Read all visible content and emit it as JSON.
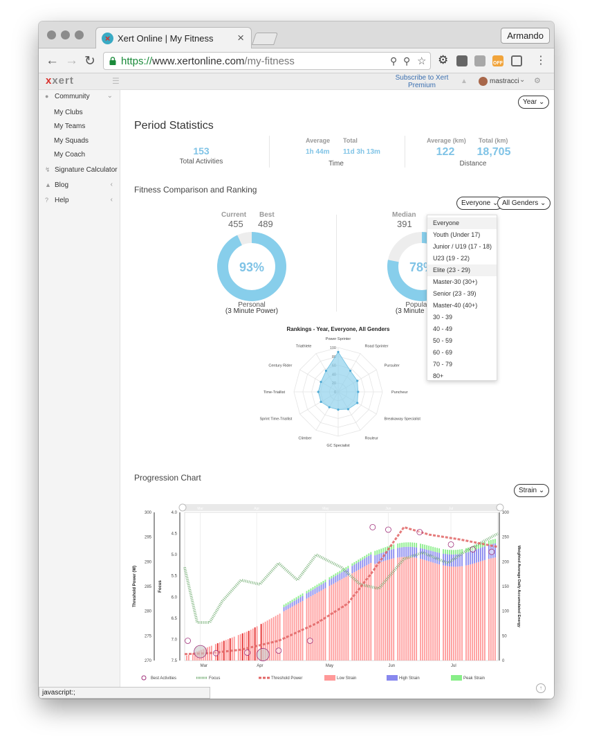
{
  "browser": {
    "tab_title": "Xert Online | My Fitness",
    "profile_name": "Armando",
    "url_scheme": "https://",
    "url_host": "www.xertonline.com",
    "url_path": "/my-fitness",
    "ext_badge": "OFF",
    "status_text": "javascript:;"
  },
  "header": {
    "logo": "xert",
    "subscribe": "Subscribe to Xert Premium",
    "username": "mastracci"
  },
  "sidebar": {
    "community": "Community",
    "sub_items": [
      "My Clubs",
      "My Teams",
      "My Squads",
      "My Coach"
    ],
    "items": [
      "Signature Calculator",
      "Blog",
      "Help"
    ]
  },
  "period_select": "Year",
  "period_stats": {
    "title": "Period Statistics",
    "total_activities": "153",
    "total_activities_label": "Total Activities",
    "time_avg_label": "Average",
    "time_avg": "1h 44m",
    "time_total_label": "Total",
    "time_total": "11d 3h 13m",
    "time_label": "Time",
    "dist_avg_label": "Average (km)",
    "dist_avg": "122",
    "dist_total_label": "Total (km)",
    "dist_total": "18,705",
    "dist_label": "Distance"
  },
  "fitness": {
    "title": "Fitness Comparison and Ranking",
    "filter_age": "Everyone",
    "filter_gender": "All Genders",
    "current_label": "Current",
    "current": "455",
    "best_label": "Best",
    "best": "489",
    "personal_pct": "93%",
    "personal_fraction": 0.93,
    "personal_label": "Personal",
    "personal_sub": "(3 Minute Power)",
    "median_label": "Median",
    "median": "391",
    "population_pct": "78%",
    "population_fraction": 0.78,
    "population_label": "Population",
    "population_sub": "(3 Minute Power)"
  },
  "age_options": [
    "Everyone",
    "Youth (Under 17)",
    "Junior / U19 (17 - 18)",
    "U23 (19 - 22)",
    "Elite (23 - 29)",
    "Master-30 (30+)",
    "Senior (23 - 39)",
    "Master-40 (40+)",
    "30 - 39",
    "40 - 49",
    "50 - 59",
    "60 - 69",
    "70 - 79",
    "80+"
  ],
  "progression": {
    "title": "Progression Chart",
    "select": "Strain"
  },
  "chart_data": [
    {
      "type": "radar",
      "title": "Rankings - Year, Everyone, All Genders",
      "categories": [
        "Power Sprinter",
        "Road Sprinter",
        "Pursuiter",
        "Puncheur",
        "Breakaway Specialist",
        "Rouleur",
        "GC Specialist",
        "Climber",
        "Sprint Time-Triallist",
        "Time-Triallist",
        "Century Rider",
        "Triathlete"
      ],
      "values": [
        90,
        55,
        50,
        45,
        50,
        45,
        40,
        40,
        45,
        45,
        45,
        55
      ],
      "ticks": [
        "100",
        "80",
        "60",
        "40",
        "20",
        "0"
      ],
      "rlim": [
        0,
        100
      ]
    },
    {
      "type": "bar",
      "x_ticks": [
        "Mar",
        "Apr",
        "May",
        "Jun",
        "Jul"
      ],
      "navigator_ticks": [
        "Mar",
        "Apr",
        "May",
        "Jun",
        "Jul"
      ],
      "y_left_label": "Threshold Power (W)",
      "y_left_ticks": [
        "300",
        "295",
        "290",
        "285",
        "280",
        "275",
        "270"
      ],
      "y_left_range": [
        270,
        300
      ],
      "y_focus_label": "Focus",
      "y_focus_ticks": [
        "4.0",
        "4.5",
        "5.0",
        "5.5",
        "6.0",
        "6.5",
        "7.0",
        "7.5"
      ],
      "y_focus_range": [
        4.0,
        7.5
      ],
      "y_right_label": "Weighted Average Daily Accumulated Energy",
      "y_right_ticks": [
        "300",
        "250",
        "200",
        "150",
        "100",
        "50",
        "0"
      ],
      "y_right_range": [
        0,
        300
      ],
      "legend": [
        "Best Activities",
        "Focus",
        "Threshold Power",
        "Low Strain",
        "High Strain",
        "Peak Strain"
      ],
      "colors": {
        "low": "#ff9999",
        "high": "#8888ee",
        "peak": "#88ee88",
        "focus": "#6faa6f",
        "threshold": "#e06464",
        "best": "#a0307a"
      },
      "threshold_power": [
        [
          0,
          271.3
        ],
        [
          0.08,
          271.5
        ],
        [
          0.18,
          272.2
        ],
        [
          0.3,
          274.0
        ],
        [
          0.42,
          277.5
        ],
        [
          0.52,
          281.5
        ],
        [
          0.6,
          288.0
        ],
        [
          0.7,
          297.0
        ],
        [
          0.78,
          295.5
        ],
        [
          0.88,
          294.5
        ],
        [
          1.0,
          293.0
        ]
      ],
      "focus": [
        [
          0,
          5.3
        ],
        [
          0.04,
          6.6
        ],
        [
          0.08,
          6.6
        ],
        [
          0.12,
          6.1
        ],
        [
          0.18,
          5.6
        ],
        [
          0.24,
          5.7
        ],
        [
          0.3,
          5.2
        ],
        [
          0.36,
          5.6
        ],
        [
          0.42,
          5.0
        ],
        [
          0.5,
          5.3
        ],
        [
          0.56,
          5.7
        ],
        [
          0.62,
          5.8
        ],
        [
          0.7,
          5.1
        ],
        [
          0.76,
          4.95
        ],
        [
          0.84,
          5.2
        ],
        [
          0.9,
          4.9
        ],
        [
          1.0,
          4.5
        ]
      ],
      "best_activities": [
        [
          0.01,
          274
        ],
        [
          0.05,
          271.8
        ],
        [
          0.1,
          271.5
        ],
        [
          0.2,
          271.6
        ],
        [
          0.25,
          271.2
        ],
        [
          0.3,
          272
        ],
        [
          0.4,
          274
        ],
        [
          0.6,
          297
        ],
        [
          0.65,
          296.5
        ],
        [
          0.75,
          296
        ],
        [
          0.85,
          293.5
        ],
        [
          0.92,
          292.5
        ],
        [
          0.98,
          292
        ]
      ]
    }
  ]
}
